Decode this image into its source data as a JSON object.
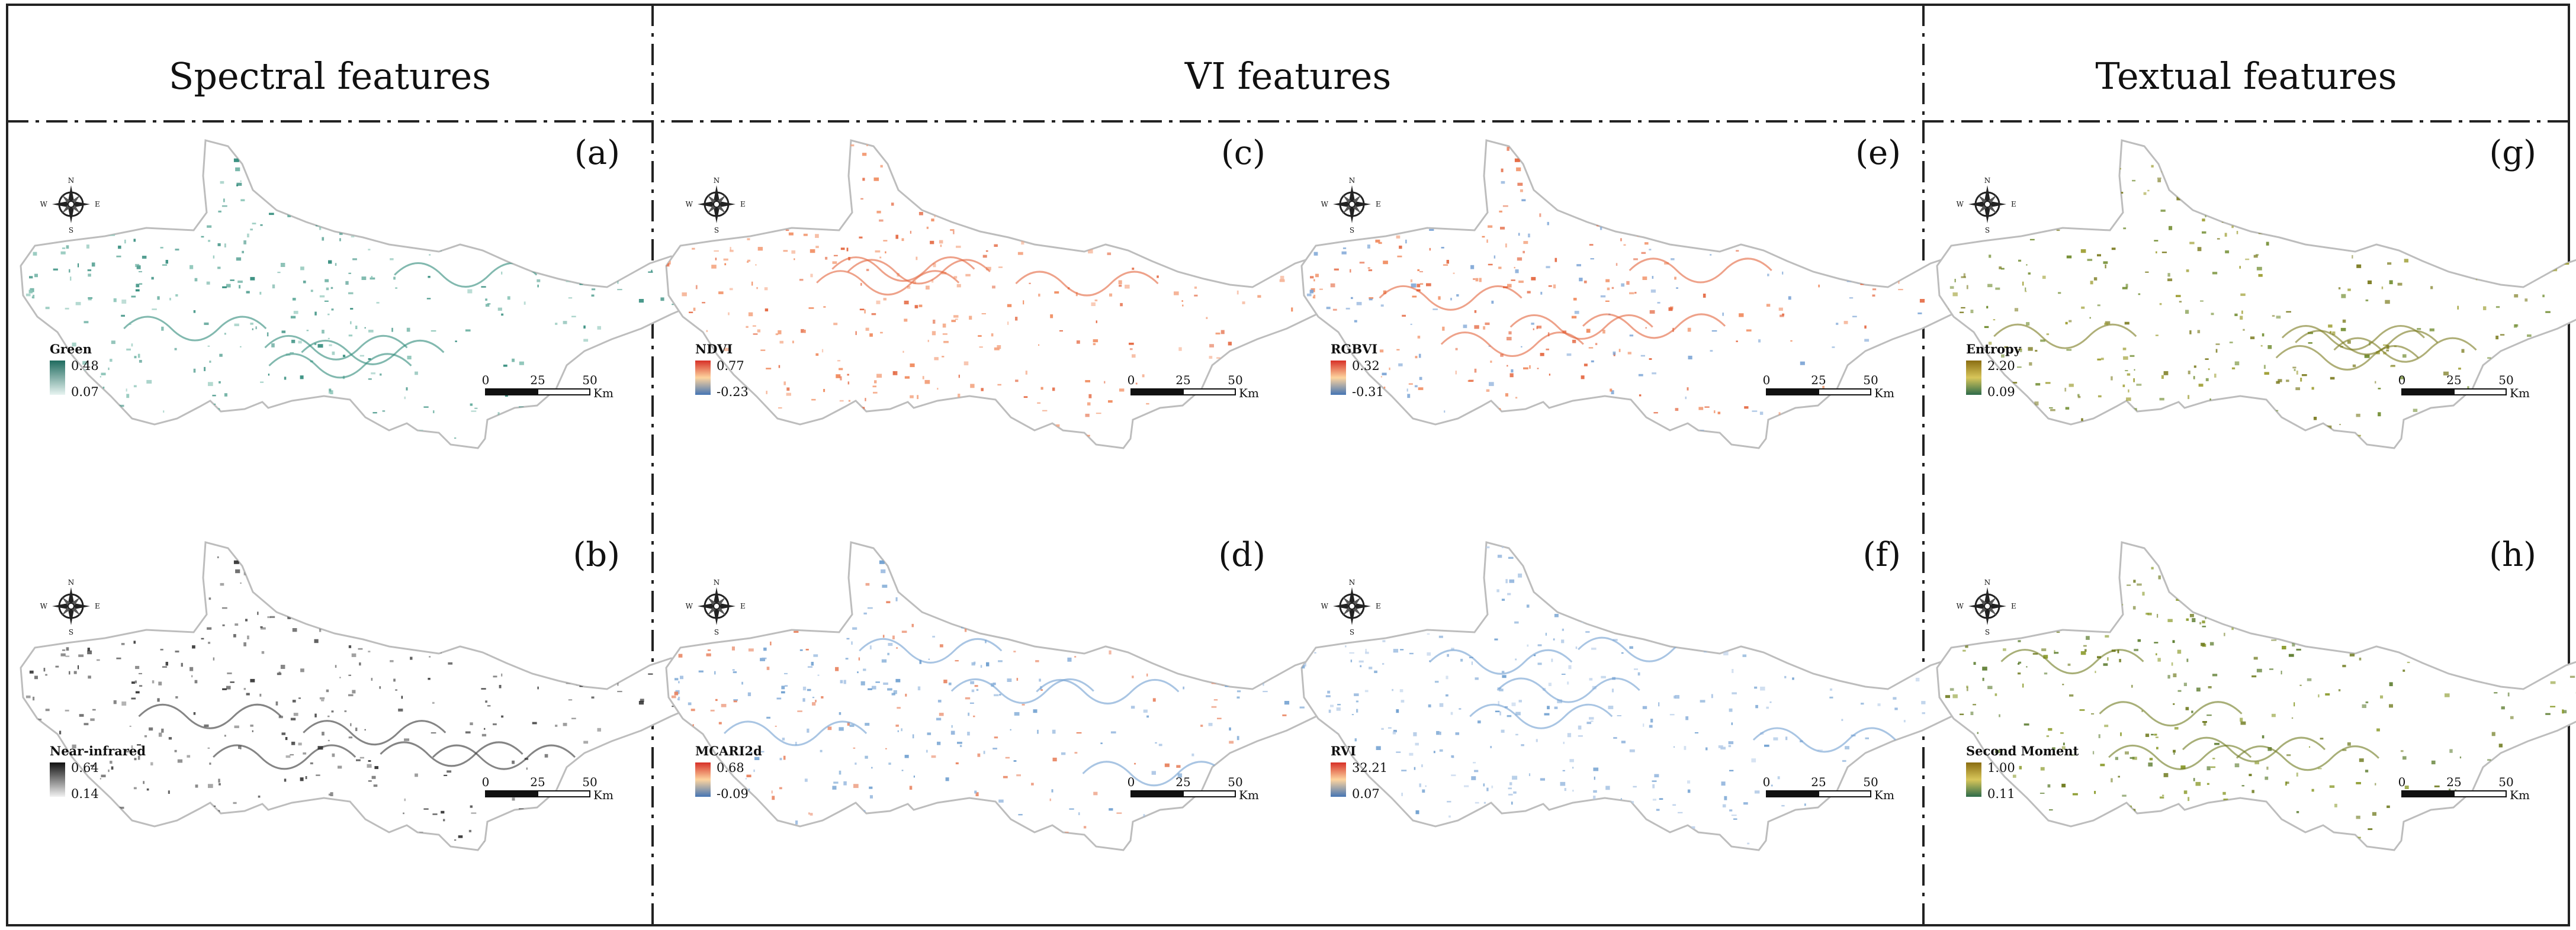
{
  "headers": [
    {
      "label": "Spectral features"
    },
    {
      "label": "VI features"
    },
    {
      "label": "Textual features"
    }
  ],
  "scalebar": {
    "ticks": [
      "0",
      "25",
      "50"
    ],
    "unit": "Km"
  },
  "compass": {
    "n": "N",
    "s": "S",
    "e": "E",
    "w": "W"
  },
  "panels": [
    {
      "id": "a",
      "label": "(a)",
      "legend": "Green",
      "max": "0.48",
      "min": "0.07",
      "colors": [
        "#1f6b5f",
        "#e8f4f1"
      ],
      "dots": [
        "#2f8a7a",
        "#5fa99a",
        "#8cc5b8"
      ]
    },
    {
      "id": "b",
      "label": "(b)",
      "legend": "Near-infrared",
      "max": "0.64",
      "min": "0.14",
      "colors": [
        "#111111",
        "#f2f2f2"
      ],
      "dots": [
        "#333333",
        "#555555",
        "#7a7a7a"
      ]
    },
    {
      "id": "c",
      "label": "(c)",
      "legend": "NDVI",
      "max": "0.77",
      "min": "-0.23",
      "colors": [
        "#d73027",
        "#fdd49e",
        "#4575b4"
      ],
      "dots": [
        "#e3643c",
        "#f08a5d",
        "#f4a582"
      ]
    },
    {
      "id": "d",
      "label": "(d)",
      "legend": "MCARI2d",
      "max": "0.68",
      "min": "-0.09",
      "colors": [
        "#d73027",
        "#fdd49e",
        "#4575b4"
      ],
      "dots": [
        "#6f9fd0",
        "#92b5dd",
        "#e8825e"
      ]
    },
    {
      "id": "e",
      "label": "(e)",
      "legend": "RGBVI",
      "max": "0.32",
      "min": "-0.31",
      "colors": [
        "#d73027",
        "#fdd49e",
        "#4575b4"
      ],
      "dots": [
        "#e3643c",
        "#f08a5d",
        "#7ea6d6"
      ]
    },
    {
      "id": "f",
      "label": "(f)",
      "legend": "RVI",
      "max": "32.21",
      "min": "0.07",
      "colors": [
        "#d73027",
        "#fdd49e",
        "#4575b4"
      ],
      "dots": [
        "#6f9fd0",
        "#92b5dd",
        "#b7cde8"
      ]
    },
    {
      "id": "g",
      "label": "(g)",
      "legend": "Entropy",
      "max": "2.20",
      "min": "0.09",
      "colors": [
        "#8a6d12",
        "#d8c65a",
        "#2d6b4a"
      ],
      "dots": [
        "#7a7a1e",
        "#9a9a2a",
        "#6e8a2c"
      ]
    },
    {
      "id": "h",
      "label": "(h)",
      "legend": "Second Moment",
      "max": "1.00",
      "min": "0.11",
      "colors": [
        "#8a6d12",
        "#d8c65a",
        "#2d6b4a"
      ],
      "dots": [
        "#6e7a1e",
        "#8a9a2a",
        "#5a7a2c"
      ]
    }
  ]
}
